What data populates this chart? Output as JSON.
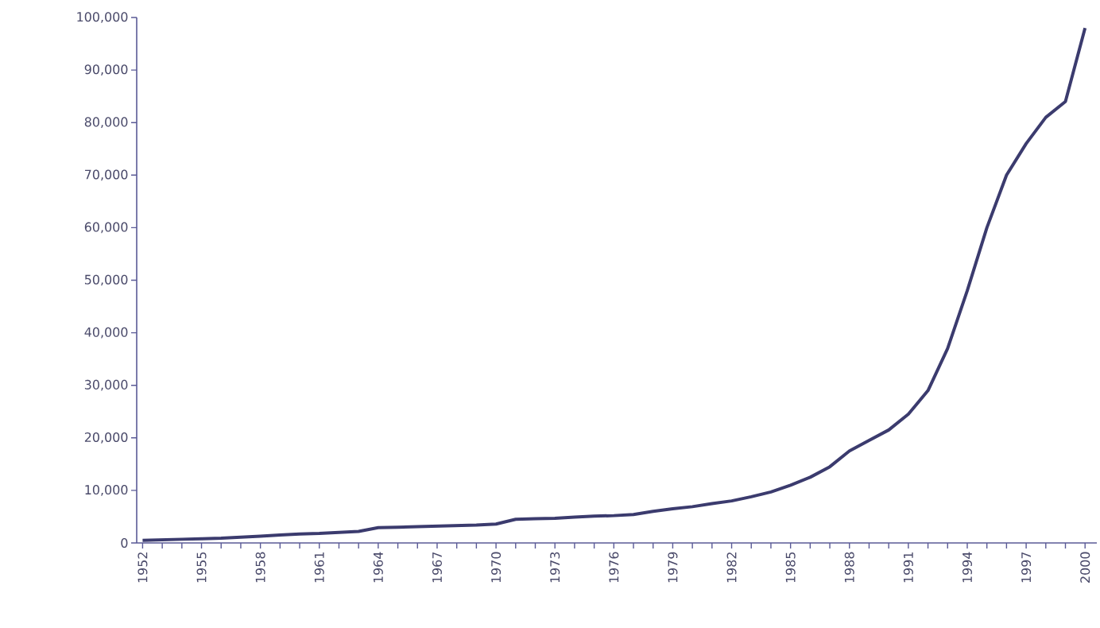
{
  "chart_data": {
    "type": "line",
    "color": "#3b3b6e",
    "marker": "none",
    "line_style": "solid",
    "grid": false,
    "x": [
      1952,
      1953,
      1954,
      1955,
      1956,
      1957,
      1958,
      1959,
      1960,
      1961,
      1962,
      1963,
      1964,
      1965,
      1966,
      1967,
      1968,
      1969,
      1970,
      1971,
      1972,
      1973,
      1974,
      1975,
      1976,
      1977,
      1978,
      1979,
      1980,
      1981,
      1982,
      1983,
      1984,
      1985,
      1986,
      1987,
      1988,
      1989,
      1990,
      1991,
      1992,
      1993,
      1994,
      1995,
      1996,
      1997,
      1998,
      1999,
      2000
    ],
    "values": [
      500,
      600,
      700,
      800,
      900,
      1100,
      1300,
      1500,
      1700,
      1800,
      2000,
      2200,
      2900,
      3000,
      3100,
      3200,
      3300,
      3400,
      3600,
      4500,
      4600,
      4700,
      4900,
      5100,
      5200,
      5400,
      6000,
      6500,
      6900,
      7500,
      8000,
      8800,
      9700,
      11000,
      12500,
      14500,
      17500,
      19500,
      21500,
      24500,
      29000,
      37000,
      48000,
      60000,
      70000,
      76000,
      81000,
      84000,
      98000
    ],
    "xlim": [
      1951.7,
      2000.6
    ],
    "xticks": [
      {
        "value": 1952,
        "label": "1952"
      },
      {
        "value": 1953,
        "label": null
      },
      {
        "value": 1954,
        "label": null
      },
      {
        "value": 1955,
        "label": "1955"
      },
      {
        "value": 1956,
        "label": null
      },
      {
        "value": 1957,
        "label": null
      },
      {
        "value": 1958,
        "label": "1958"
      },
      {
        "value": 1959,
        "label": null
      },
      {
        "value": 1960,
        "label": null
      },
      {
        "value": 1961,
        "label": "1961"
      },
      {
        "value": 1962,
        "label": null
      },
      {
        "value": 1963,
        "label": null
      },
      {
        "value": 1964,
        "label": "1964"
      },
      {
        "value": 1965,
        "label": null
      },
      {
        "value": 1966,
        "label": null
      },
      {
        "value": 1967,
        "label": "1967"
      },
      {
        "value": 1968,
        "label": null
      },
      {
        "value": 1969,
        "label": null
      },
      {
        "value": 1970,
        "label": "1970"
      },
      {
        "value": 1971,
        "label": null
      },
      {
        "value": 1972,
        "label": null
      },
      {
        "value": 1973,
        "label": "1973"
      },
      {
        "value": 1974,
        "label": null
      },
      {
        "value": 1975,
        "label": null
      },
      {
        "value": 1976,
        "label": "1976"
      },
      {
        "value": 1977,
        "label": null
      },
      {
        "value": 1978,
        "label": null
      },
      {
        "value": 1979,
        "label": "1979"
      },
      {
        "value": 1980,
        "label": null
      },
      {
        "value": 1981,
        "label": null
      },
      {
        "value": 1982,
        "label": "1982"
      },
      {
        "value": 1983,
        "label": null
      },
      {
        "value": 1984,
        "label": null
      },
      {
        "value": 1985,
        "label": "1985"
      },
      {
        "value": 1986,
        "label": null
      },
      {
        "value": 1987,
        "label": null
      },
      {
        "value": 1988,
        "label": "1988"
      },
      {
        "value": 1989,
        "label": null
      },
      {
        "value": 1990,
        "label": null
      },
      {
        "value": 1991,
        "label": "1991"
      },
      {
        "value": 1992,
        "label": null
      },
      {
        "value": 1993,
        "label": null
      },
      {
        "value": 1994,
        "label": "1994"
      },
      {
        "value": 1995,
        "label": null
      },
      {
        "value": 1996,
        "label": null
      },
      {
        "value": 1997,
        "label": "1997"
      },
      {
        "value": 1998,
        "label": null
      },
      {
        "value": 1999,
        "label": null
      },
      {
        "value": 2000,
        "label": "2000"
      }
    ],
    "ylim": [
      0,
      100000
    ],
    "yticks": [
      {
        "value": 0,
        "label": "0"
      },
      {
        "value": 10000,
        "label": "10,000"
      },
      {
        "value": 20000,
        "label": "20,000"
      },
      {
        "value": 30000,
        "label": "30,000"
      },
      {
        "value": 40000,
        "label": "40,000"
      },
      {
        "value": 50000,
        "label": "50,000"
      },
      {
        "value": 60000,
        "label": "60,000"
      },
      {
        "value": 70000,
        "label": "70,000"
      },
      {
        "value": 80000,
        "label": "80,000"
      },
      {
        "value": 90000,
        "label": "90,000"
      },
      {
        "value": 100000,
        "label": "100,000"
      }
    ]
  }
}
